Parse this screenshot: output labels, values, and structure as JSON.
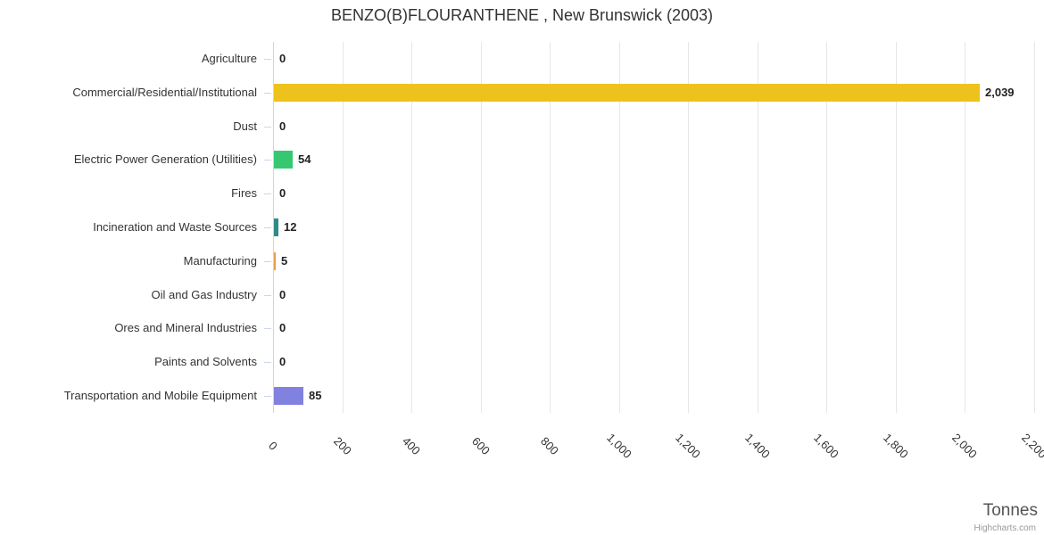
{
  "chart_data": {
    "type": "bar",
    "orientation": "horizontal",
    "title": "BENZO(B)FLOURANTHENE , New Brunswick (2003)",
    "categories": [
      "Agriculture",
      "Commercial/Residential/Institutional",
      "Dust",
      "Electric Power Generation (Utilities)",
      "Fires",
      "Incineration and Waste Sources",
      "Manufacturing",
      "Oil and Gas Industry",
      "Ores and Mineral Industries",
      "Paints and Solvents",
      "Transportation and Mobile Equipment"
    ],
    "values": [
      0,
      2039,
      0,
      54,
      0,
      12,
      5,
      0,
      0,
      0,
      85
    ],
    "value_labels": [
      "0",
      "2,039",
      "0",
      "54",
      "0",
      "12",
      "5",
      "0",
      "0",
      "0",
      "85"
    ],
    "bar_colors": [
      null,
      "#EDC21C",
      null,
      "#35C871",
      null,
      "#2E8B8B",
      "#ED9C49",
      null,
      null,
      null,
      "#8181DF"
    ],
    "xlabel": "Tonnes",
    "ylabel": "",
    "xlim": [
      0,
      2200
    ],
    "x_ticks": [
      0,
      200,
      400,
      600,
      800,
      1000,
      1200,
      1400,
      1600,
      1800,
      2000,
      2200
    ],
    "x_tick_labels": [
      "0",
      "200",
      "400",
      "600",
      "800",
      "1,000",
      "1,200",
      "1,400",
      "1,600",
      "1,800",
      "2,000",
      "2,200"
    ],
    "grid": true,
    "legend": "none",
    "credits": "Highcharts.com"
  },
  "colors": {
    "grid_line": "#e6e6e6",
    "axis_line": "#ccd6eb",
    "title_text": "#333333",
    "category_text": "#333333",
    "value_text": "#222222",
    "axis_title_text": "#555555",
    "credits_text": "#999999"
  }
}
